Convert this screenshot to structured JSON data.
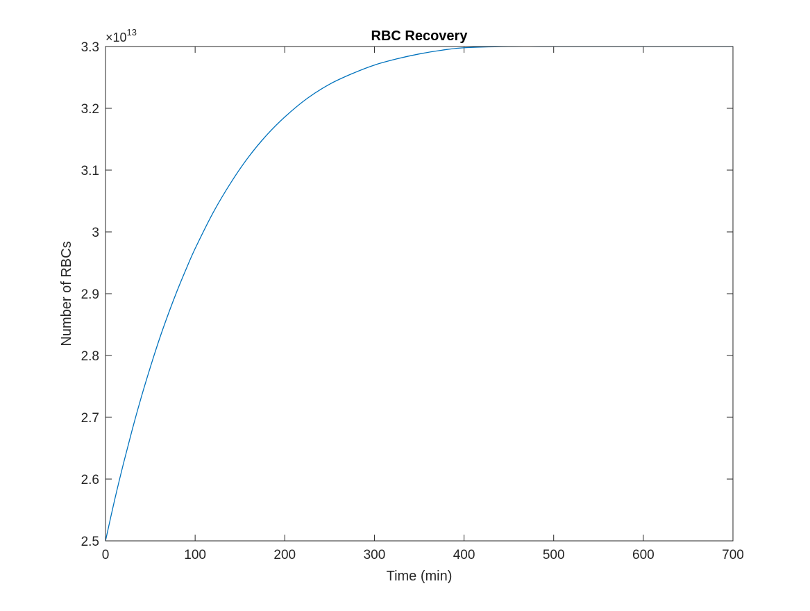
{
  "chart_data": {
    "type": "line",
    "title": "RBC Recovery",
    "xlabel": "Time (min)",
    "ylabel": "Number of RBCs",
    "xlim": [
      0,
      700
    ],
    "ylim": [
      2.5,
      3.3
    ],
    "y_exponent_label": "×10",
    "y_exponent": "13",
    "grid": false,
    "legend": "none",
    "xticks": [
      0,
      100,
      200,
      300,
      400,
      500,
      600,
      700
    ],
    "xtick_labels": [
      "0",
      "100",
      "200",
      "300",
      "400",
      "500",
      "600",
      "700"
    ],
    "yticks": [
      2.5,
      2.6,
      2.7,
      2.8,
      2.9,
      3.0,
      3.1,
      3.2,
      3.3
    ],
    "ytick_labels": [
      "2.5",
      "2.6",
      "2.7",
      "2.8",
      "2.9",
      "3",
      "3.1",
      "3.2",
      "3.3"
    ],
    "series": [
      {
        "color": "#0072bd",
        "x": [
          0,
          10,
          20,
          30,
          40,
          50,
          60,
          70,
          80,
          90,
          100,
          120,
          140,
          160,
          180,
          200,
          225,
          250,
          275,
          300,
          325,
          350,
          375,
          400,
          450,
          500,
          550,
          600,
          650,
          700
        ],
        "y": [
          2.5,
          2.565,
          2.625,
          2.681,
          2.733,
          2.781,
          2.826,
          2.867,
          2.905,
          2.94,
          2.973,
          3.031,
          3.08,
          3.122,
          3.157,
          3.186,
          3.216,
          3.239,
          3.256,
          3.27,
          3.28,
          3.288,
          3.294,
          3.298,
          3.304,
          3.308,
          3.31,
          3.311,
          3.312,
          3.312
        ]
      }
    ]
  }
}
